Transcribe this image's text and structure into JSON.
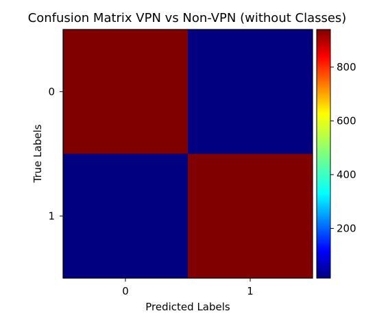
{
  "chart_data": {
    "type": "heatmap",
    "title": "Confusion Matrix VPN vs Non-VPN (without Classes)",
    "xlabel": "Predicted Labels",
    "ylabel": "True Labels",
    "x_categories": [
      "0",
      "1"
    ],
    "y_categories": [
      "0",
      "1"
    ],
    "values": [
      [
        940,
        15
      ],
      [
        15,
        940
      ]
    ],
    "colormap": "jet",
    "colorbar": {
      "range": [
        15,
        940
      ],
      "ticks": [
        200,
        400,
        600,
        800
      ],
      "tick_labels": [
        "200",
        "400",
        "600",
        "800"
      ]
    },
    "grid": false
  }
}
